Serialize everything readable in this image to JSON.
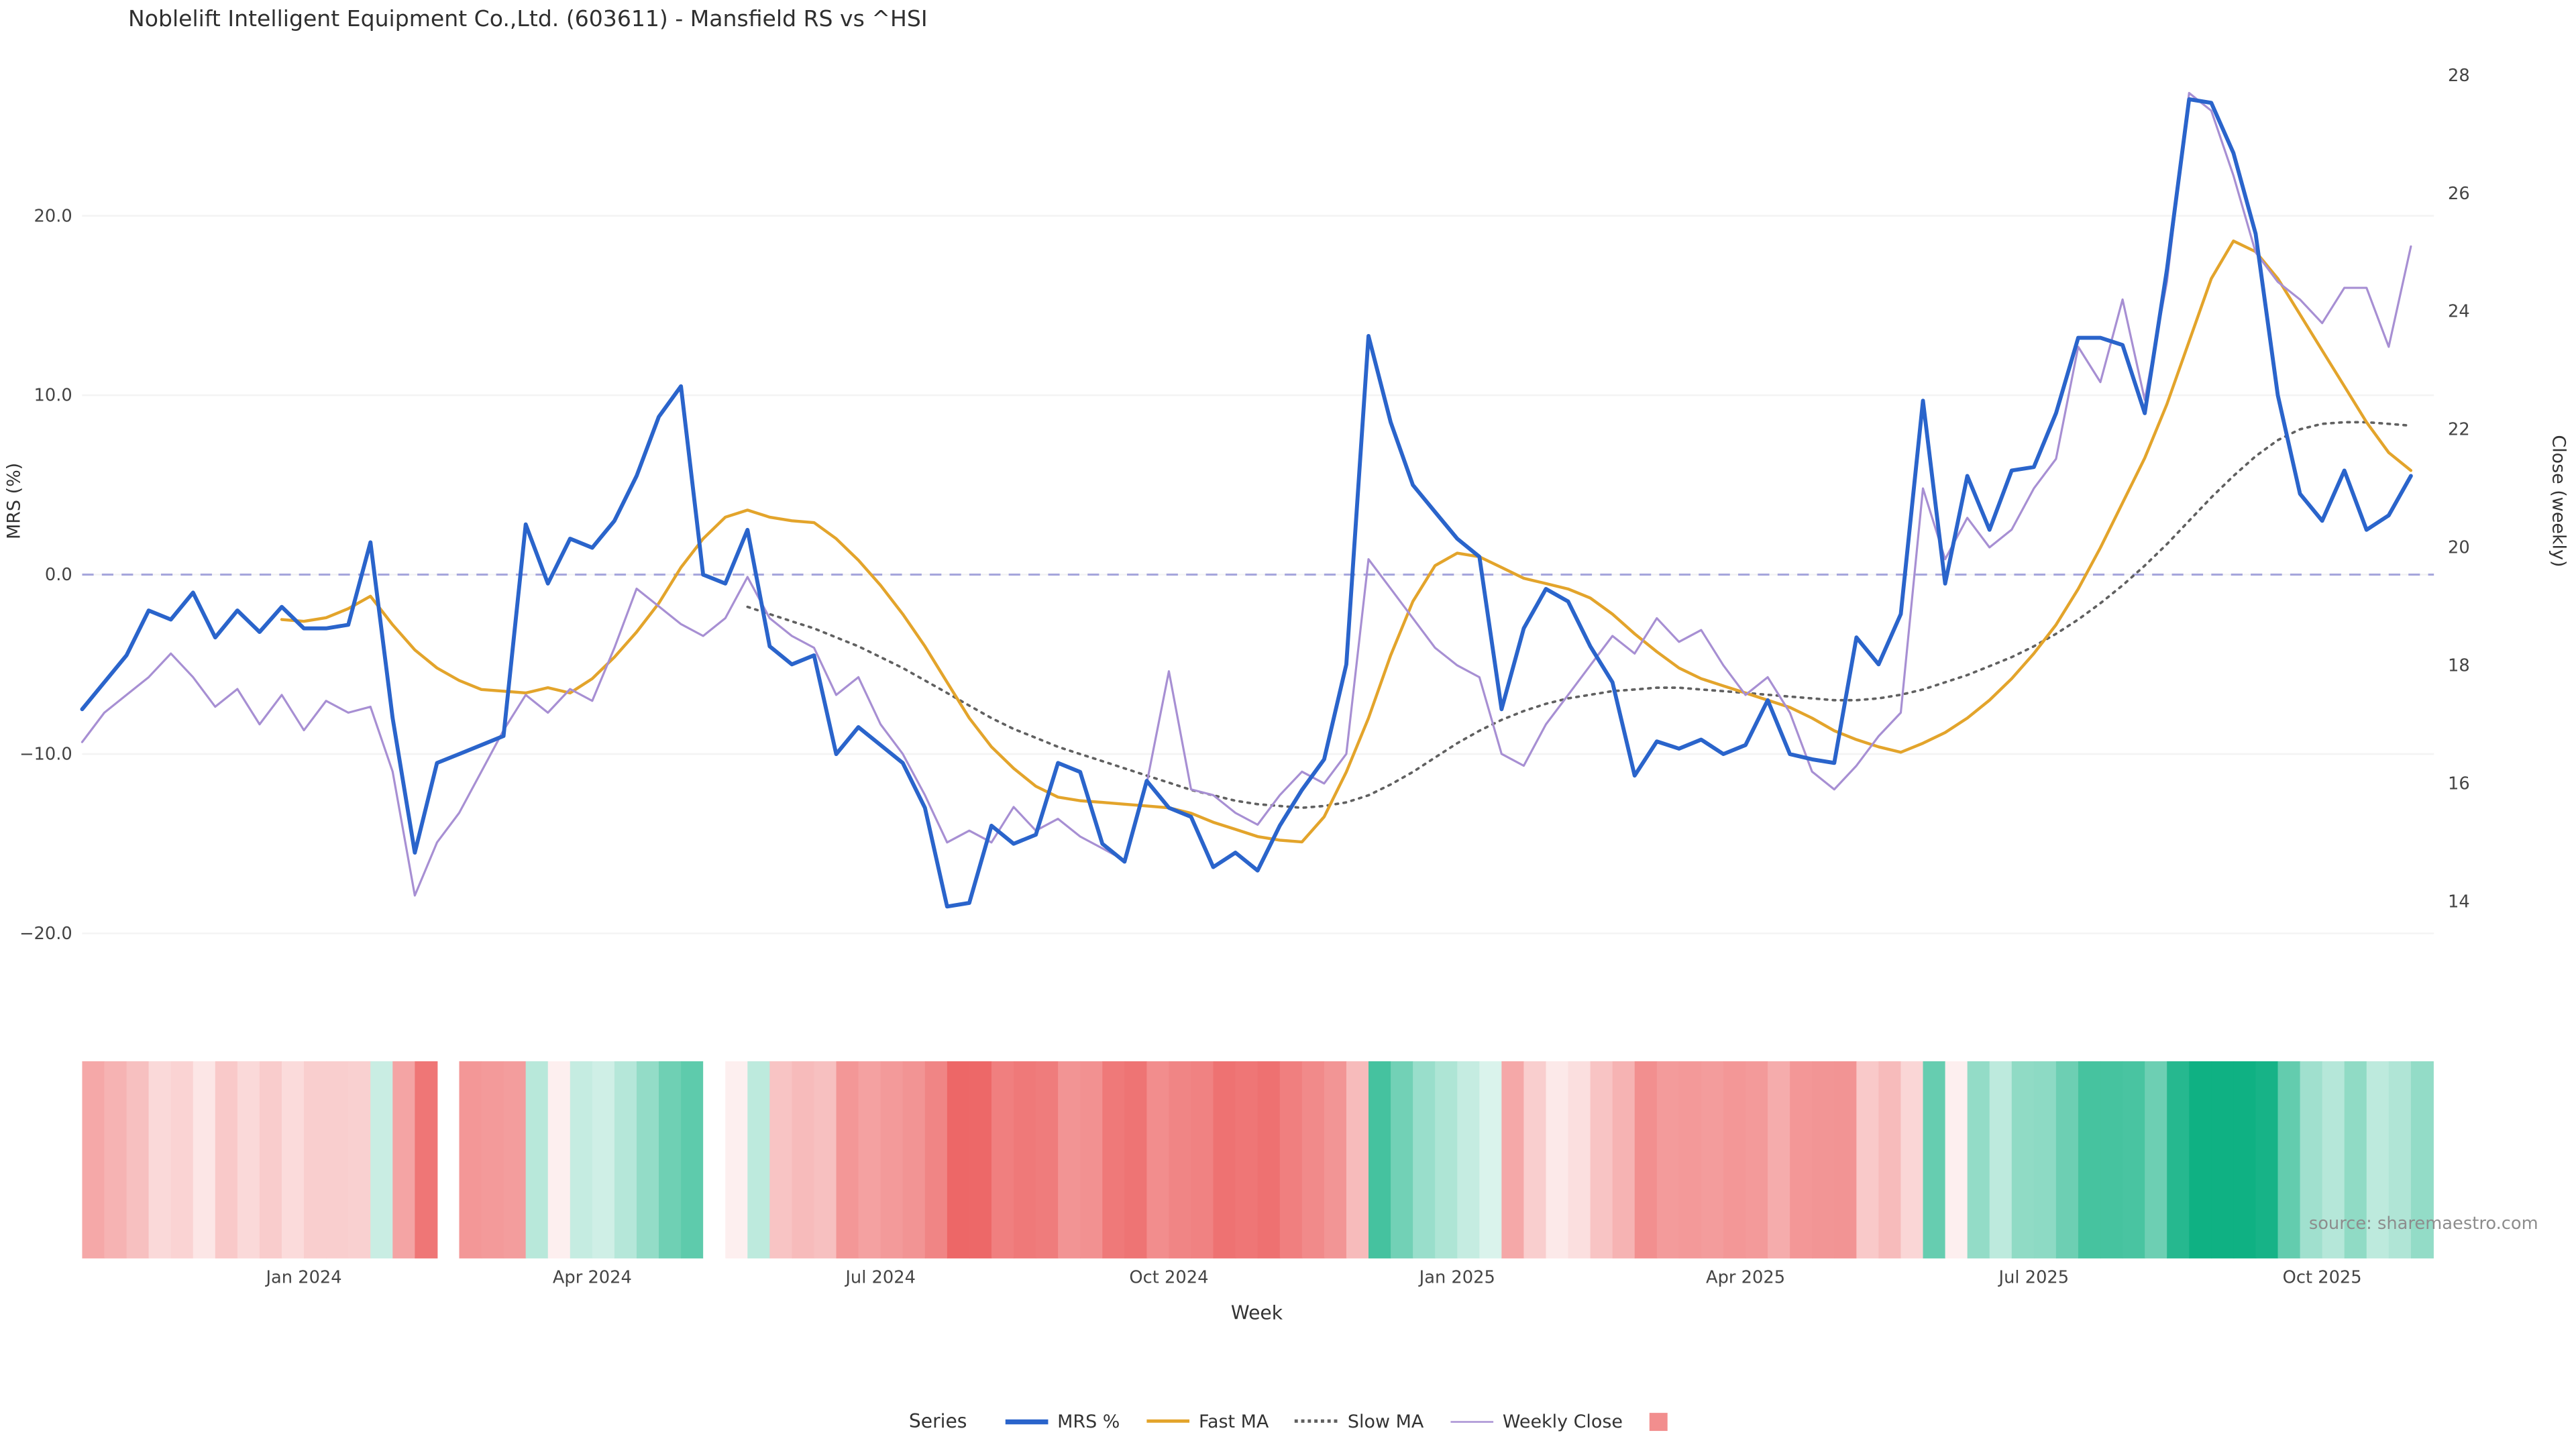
{
  "title": "Noblelift Intelligent Equipment Co.,Ltd. (603611) - Mansfield RS vs ^HSI",
  "source": "source: sharemaestro.com",
  "axes": {
    "left_label": "MRS (%)",
    "right_label": "Close (weekly)",
    "x_label": "Week",
    "left_ticks": [
      {
        "value": 20,
        "label": "20.0"
      },
      {
        "value": 10,
        "label": "10.0"
      },
      {
        "value": 0,
        "label": "0.0"
      },
      {
        "value": -10,
        "label": "−10.0"
      },
      {
        "value": -20,
        "label": "−20.0"
      }
    ],
    "right_ticks": [
      {
        "value": 28,
        "label": "28"
      },
      {
        "value": 26,
        "label": "26"
      },
      {
        "value": 24,
        "label": "24"
      },
      {
        "value": 22,
        "label": "22"
      },
      {
        "value": 20,
        "label": "20"
      },
      {
        "value": 18,
        "label": "18"
      },
      {
        "value": 16,
        "label": "16"
      },
      {
        "value": 14,
        "label": "14"
      }
    ],
    "x_ticks": [
      {
        "index": 10,
        "label": "Jan 2024"
      },
      {
        "index": 23,
        "label": "Apr 2024"
      },
      {
        "index": 36,
        "label": "Jul 2024"
      },
      {
        "index": 49,
        "label": "Oct 2024"
      },
      {
        "index": 62,
        "label": "Jan 2025"
      },
      {
        "index": 75,
        "label": "Apr 2025"
      },
      {
        "index": 88,
        "label": "Jul 2025"
      },
      {
        "index": 101,
        "label": "Oct 2025"
      }
    ]
  },
  "legend": {
    "title": "Series",
    "items": [
      {
        "label": "MRS %",
        "color": "#2a64cb",
        "swatch": "line-thick"
      },
      {
        "label": "Fast MA",
        "color": "#e3a42b",
        "swatch": "line"
      },
      {
        "label": "Slow MA",
        "color": "#606060",
        "swatch": "line-dotted"
      },
      {
        "label": "Weekly Close",
        "color": "#a78fd3",
        "swatch": "line-thin"
      },
      {
        "label": "",
        "color": "#f28e8e",
        "swatch": "square"
      }
    ]
  },
  "chart_data": {
    "type": "line",
    "x_unit": "week",
    "n_points": 106,
    "left_range": [
      -22,
      30.2
    ],
    "right_range": [
      12.85,
      28.72
    ],
    "zero_line_color": "#a6a6dc",
    "grid_color": "#f3f3f3",
    "series": [
      {
        "name": "MRS %",
        "axis": "left",
        "color": "#2a64cb",
        "width": 2.4,
        "dash": "",
        "values": [
          -7.5,
          -6,
          -4.5,
          -2,
          -2.5,
          -1,
          -3.5,
          -2,
          -3.2,
          -1.8,
          -3,
          -3,
          -2.8,
          1.8,
          -8,
          -15.5,
          -10.5,
          -10,
          -9.5,
          -9,
          2.8,
          -0.5,
          2,
          1.5,
          3,
          5.5,
          8.8,
          10.5,
          0,
          -0.5,
          2.5,
          -4,
          -5,
          -4.5,
          -10,
          -8.5,
          -9.5,
          -10.5,
          -13,
          -18.5,
          -18.3,
          -14,
          -15,
          -14.5,
          -10.5,
          -11,
          -15,
          -16,
          -11.5,
          -13,
          -13.5,
          -16.3,
          -15.5,
          -16.5,
          -14,
          -12,
          -10.3,
          -5,
          13.3,
          8.5,
          5,
          3.5,
          2,
          1,
          -7.5,
          -3,
          -0.8,
          -1.5,
          -4,
          -6,
          -11.2,
          -9.3,
          -9.7,
          -9.2,
          -10,
          -9.5,
          -7,
          -10,
          -10.3,
          -10.5,
          -3.5,
          -5,
          -2.2,
          9.7,
          -0.5,
          5.5,
          2.5,
          5.8,
          6,
          9,
          13.2,
          13.2,
          12.8,
          9,
          17,
          26.5,
          26.3,
          23.5,
          19,
          10,
          4.5,
          3,
          5.8,
          2.5,
          3.3,
          5.5
        ]
      },
      {
        "name": "Fast MA",
        "axis": "left",
        "color": "#e3a42b",
        "width": 1.8,
        "dash": "",
        "values": [
          null,
          null,
          null,
          null,
          null,
          null,
          null,
          null,
          null,
          -2.5,
          -2.6,
          -2.4,
          -1.9,
          -1.2,
          -2.8,
          -4.2,
          -5.2,
          -5.9,
          -6.4,
          -6.5,
          -6.6,
          -6.3,
          -6.6,
          -5.8,
          -4.6,
          -3.2,
          -1.6,
          0.4,
          2.0,
          3.2,
          3.6,
          3.2,
          3.0,
          2.9,
          2.0,
          0.8,
          -0.6,
          -2.2,
          -4.0,
          -6.0,
          -8.0,
          -9.6,
          -10.8,
          -11.8,
          -12.4,
          -12.6,
          -12.7,
          -12.8,
          -12.9,
          -13.0,
          -13.3,
          -13.8,
          -14.2,
          -14.6,
          -14.8,
          -14.9,
          -13.5,
          -11.0,
          -8.0,
          -4.5,
          -1.5,
          0.5,
          1.2,
          1.0,
          0.4,
          -0.2,
          -0.5,
          -0.8,
          -1.3,
          -2.2,
          -3.3,
          -4.3,
          -5.2,
          -5.8,
          -6.2,
          -6.6,
          -7.0,
          -7.4,
          -8.0,
          -8.7,
          -9.2,
          -9.6,
          -9.9,
          -9.4,
          -8.8,
          -8.0,
          -7.0,
          -5.8,
          -4.4,
          -2.8,
          -0.8,
          1.5,
          4.0,
          6.5,
          9.5,
          13.0,
          16.5,
          18.6,
          18.0,
          16.5,
          14.5,
          12.5,
          10.5,
          8.5,
          6.8,
          5.8
        ]
      },
      {
        "name": "Slow MA",
        "axis": "left",
        "color": "#606060",
        "width": 1.5,
        "dash": "1.5 3.4",
        "values": [
          null,
          null,
          null,
          null,
          null,
          null,
          null,
          null,
          null,
          null,
          null,
          null,
          null,
          null,
          null,
          null,
          null,
          null,
          null,
          null,
          null,
          null,
          null,
          null,
          null,
          null,
          null,
          null,
          null,
          null,
          -1.8,
          -2.2,
          -2.6,
          -3.0,
          -3.5,
          -4.0,
          -4.6,
          -5.2,
          -5.9,
          -6.6,
          -7.3,
          -8.0,
          -8.6,
          -9.1,
          -9.6,
          -10.0,
          -10.4,
          -10.8,
          -11.2,
          -11.6,
          -12.0,
          -12.3,
          -12.6,
          -12.8,
          -12.9,
          -13.0,
          -12.9,
          -12.7,
          -12.3,
          -11.7,
          -11.0,
          -10.2,
          -9.4,
          -8.7,
          -8.1,
          -7.6,
          -7.2,
          -6.9,
          -6.7,
          -6.5,
          -6.4,
          -6.3,
          -6.3,
          -6.4,
          -6.5,
          -6.6,
          -6.7,
          -6.8,
          -6.9,
          -7.0,
          -7.0,
          -6.9,
          -6.7,
          -6.4,
          -6.0,
          -5.6,
          -5.1,
          -4.6,
          -4.0,
          -3.3,
          -2.5,
          -1.6,
          -0.6,
          0.5,
          1.7,
          3.0,
          4.3,
          5.5,
          6.6,
          7.5,
          8.1,
          8.4,
          8.5,
          8.5,
          8.4,
          8.3
        ]
      },
      {
        "name": "Weekly Close",
        "axis": "right",
        "color": "#a78fd3",
        "width": 1.3,
        "dash": "",
        "values": [
          16.7,
          17.2,
          17.5,
          17.8,
          18.2,
          17.8,
          17.3,
          17.6,
          17.0,
          17.5,
          16.9,
          17.4,
          17.2,
          17.3,
          16.2,
          14.1,
          15.0,
          15.5,
          16.2,
          16.9,
          17.5,
          17.2,
          17.6,
          17.4,
          18.3,
          19.3,
          19.0,
          18.7,
          18.5,
          18.8,
          19.5,
          18.8,
          18.5,
          18.3,
          17.5,
          17.8,
          17.0,
          16.5,
          15.8,
          15.0,
          15.2,
          15.0,
          15.6,
          15.2,
          15.4,
          15.1,
          14.9,
          14.7,
          16.0,
          17.9,
          15.9,
          15.8,
          15.5,
          15.3,
          15.8,
          16.2,
          16.0,
          16.5,
          19.8,
          19.3,
          18.8,
          18.3,
          18.0,
          17.8,
          16.5,
          16.3,
          17.0,
          17.5,
          18.0,
          18.5,
          18.2,
          18.8,
          18.4,
          18.6,
          18.0,
          17.5,
          17.8,
          17.2,
          16.2,
          15.9,
          16.3,
          16.8,
          17.2,
          21.0,
          19.8,
          20.5,
          20.0,
          20.3,
          21.0,
          21.5,
          23.4,
          22.8,
          24.2,
          22.5,
          24.5,
          27.7,
          27.4,
          26.3,
          25.0,
          24.5,
          24.2,
          23.8,
          24.4,
          24.4,
          23.4,
          25.1
        ]
      }
    ],
    "heatmap": {
      "derived_from": "MRS %",
      "negative_color": "#ec5f5f",
      "positive_color": "#0fb183",
      "max_abs": 20,
      "gap_indices": [
        16
      ]
    }
  }
}
